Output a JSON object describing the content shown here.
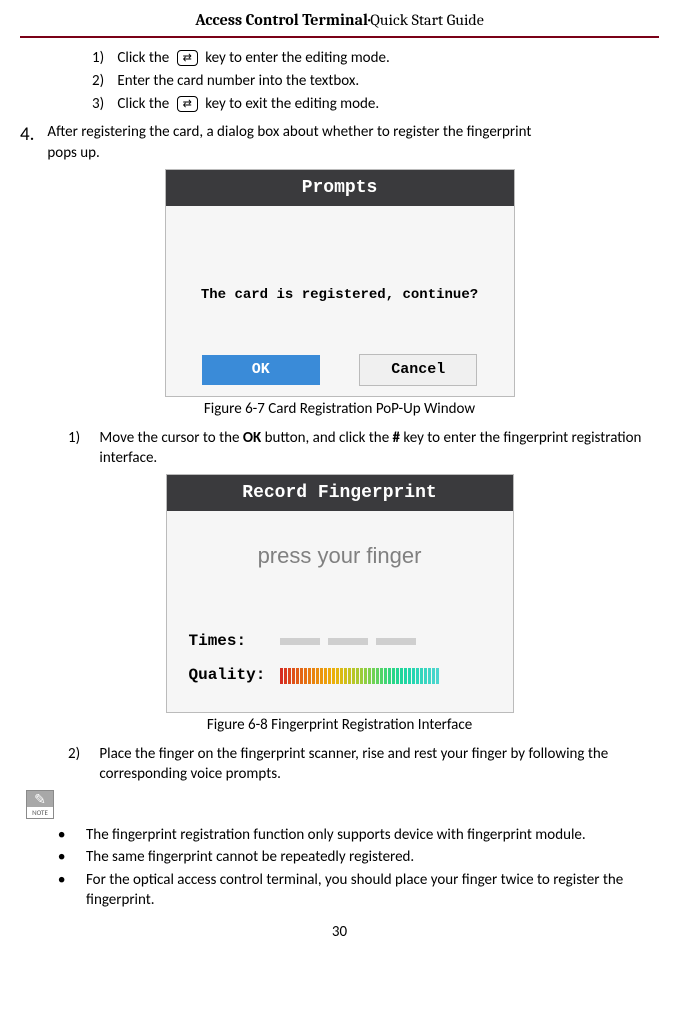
{
  "header": {
    "bold": "Access Control Terminal",
    "dot": "·",
    "rest": "Quick Start Guide"
  },
  "inner_steps": {
    "s1_a": "Click the",
    "s1_b": "key to enter the editing mode.",
    "s2": "Enter the card number into the textbox.",
    "s3_a": "Click the",
    "s3_b": "key to exit the editing mode."
  },
  "key_icon_glyph": "⇄",
  "step4": {
    "num": "4.",
    "text1": "After registering the card, a dialog box about whether to register the fingerprint",
    "text2": "pops up."
  },
  "dialog1": {
    "title": "Prompts",
    "msg": "The card is registered, continue?",
    "ok": "OK",
    "cancel": "Cancel"
  },
  "figcap1": "Figure 6-7 Card Registration PoP-Up Window",
  "sub1": {
    "num": "1)",
    "txt_a": "Move the cursor to the ",
    "txt_ok": "OK",
    "txt_b": " button, and click the ",
    "txt_hash": "#",
    "txt_c": " key to enter the fingerprint registration interface."
  },
  "dialog2": {
    "title": "Record Fingerprint",
    "press": "press your finger",
    "times_label": "Times:",
    "quality_label": "Quality:",
    "quality_colors": [
      "#d62d20",
      "#d93a1e",
      "#dc461b",
      "#de5119",
      "#e15c16",
      "#e36614",
      "#e57012",
      "#e77a10",
      "#e8830e",
      "#ea8c0d",
      "#eb950c",
      "#ec9e0b",
      "#eca70a",
      "#ebaf0b",
      "#e4b50e",
      "#dbba13",
      "#d0be19",
      "#c5c220",
      "#b8c628",
      "#abc930",
      "#9dcc39",
      "#8ece42",
      "#7fd04b",
      "#70d255",
      "#60d35f",
      "#50d469",
      "#41d574",
      "#34d57e",
      "#29d688",
      "#22d692",
      "#1fd69b",
      "#1fd6a3",
      "#22d6aa",
      "#27d6b1",
      "#2dd6b7",
      "#33d6bc",
      "#3ad6c1",
      "#40d6c6",
      "#46d6ca",
      "#4cd6ce"
    ]
  },
  "figcap2": "Figure 6-8 Fingerprint Registration Interface",
  "sub2": {
    "num": "2)",
    "txt": "Place the finger on the fingerprint scanner, rise and rest your finger by following the corresponding voice prompts."
  },
  "note_label": "NOTE",
  "bullets": {
    "b1": "The fingerprint registration function only supports device with fingerprint module.",
    "b2": "The same fingerprint cannot be repeatedly registered.",
    "b3": "For the optical access control terminal, you should place your finger twice to register the fingerprint."
  },
  "pagenum": "30"
}
